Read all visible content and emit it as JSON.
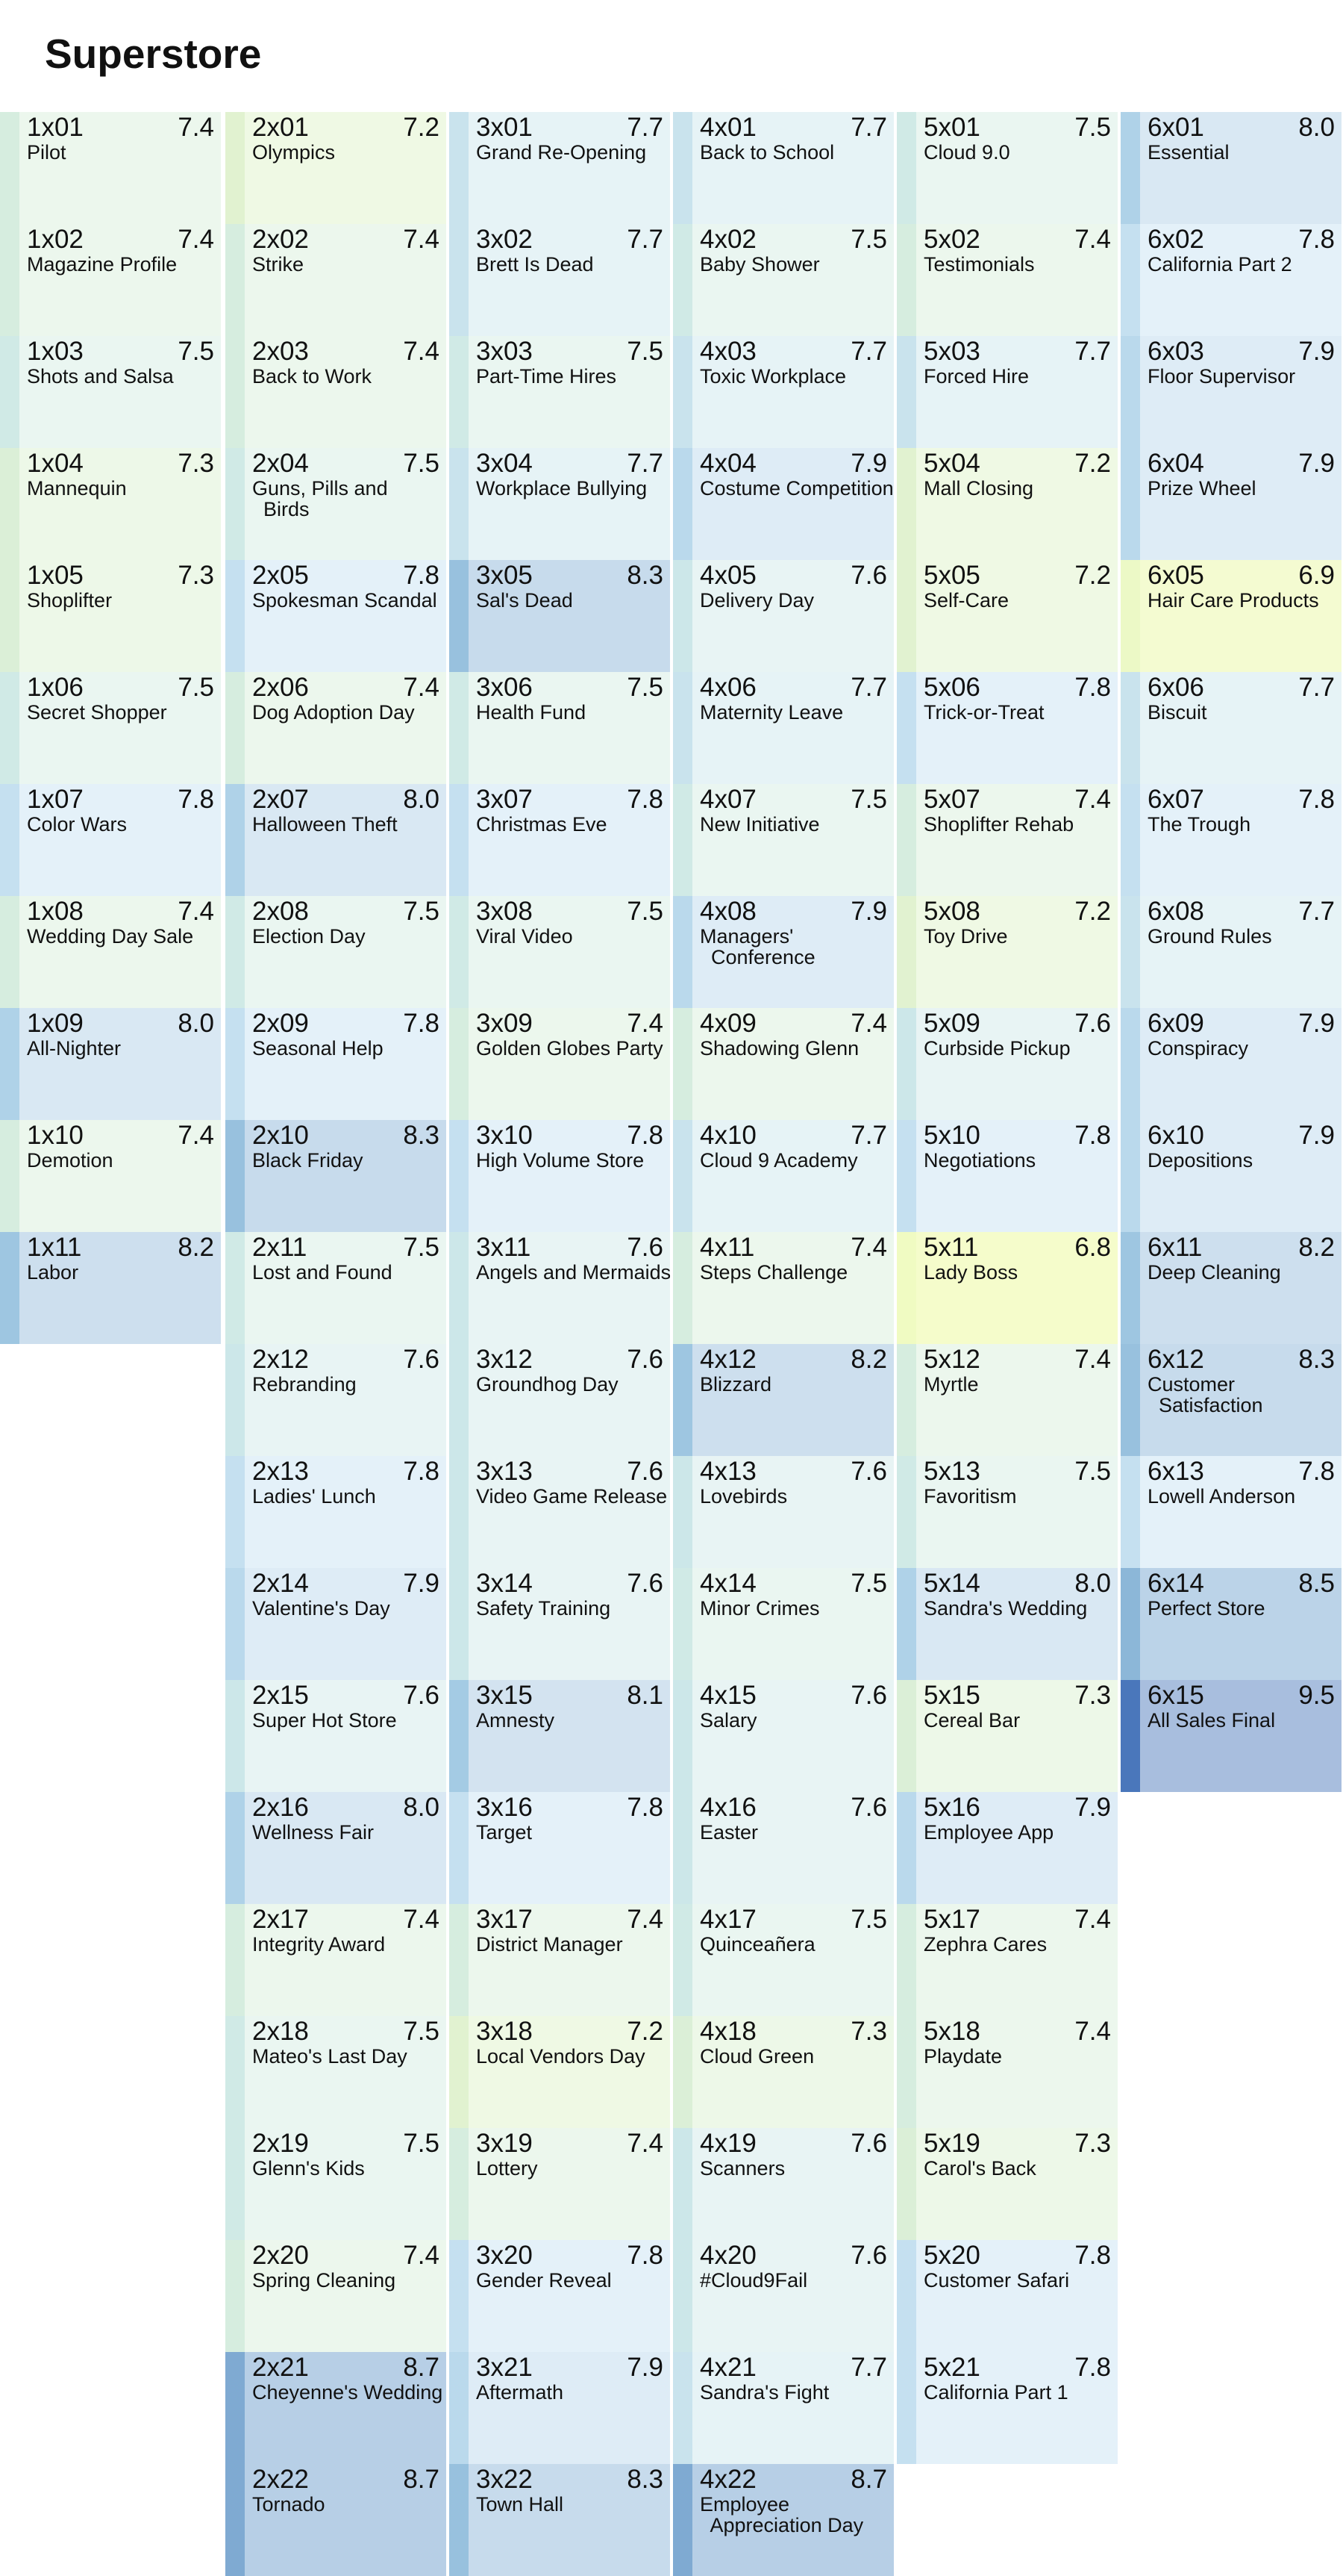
{
  "title": "Superstore",
  "chart_data": {
    "type": "heatmap",
    "title": "Superstore",
    "encoding": "tile color = episode rating (yellow-green low to blue high)",
    "color_scale": {
      "domain": [
        6.8,
        9.5
      ],
      "low": "#f5fccb",
      "mid": "#e8f5f3",
      "high": "#4a77bb"
    },
    "seasons": [
      {
        "season": 1,
        "episodes": [
          {
            "code": "1x01",
            "title": "Pilot",
            "rating": 7.4
          },
          {
            "code": "1x02",
            "title": "Magazine Profile",
            "rating": 7.4
          },
          {
            "code": "1x03",
            "title": "Shots and Salsa",
            "rating": 7.5
          },
          {
            "code": "1x04",
            "title": "Mannequin",
            "rating": 7.3
          },
          {
            "code": "1x05",
            "title": "Shoplifter",
            "rating": 7.3
          },
          {
            "code": "1x06",
            "title": "Secret Shopper",
            "rating": 7.5
          },
          {
            "code": "1x07",
            "title": "Color Wars",
            "rating": 7.8
          },
          {
            "code": "1x08",
            "title": "Wedding Day Sale",
            "rating": 7.4
          },
          {
            "code": "1x09",
            "title": "All-Nighter",
            "rating": 8.0
          },
          {
            "code": "1x10",
            "title": "Demotion",
            "rating": 7.4
          },
          {
            "code": "1x11",
            "title": "Labor",
            "rating": 8.2
          }
        ]
      },
      {
        "season": 2,
        "episodes": [
          {
            "code": "2x01",
            "title": "Olympics",
            "rating": 7.2
          },
          {
            "code": "2x02",
            "title": "Strike",
            "rating": 7.4
          },
          {
            "code": "2x03",
            "title": "Back to Work",
            "rating": 7.4
          },
          {
            "code": "2x04",
            "title": "Guns, Pills and\n  Birds",
            "rating": 7.5
          },
          {
            "code": "2x05",
            "title": "Spokesman Scandal",
            "rating": 7.8
          },
          {
            "code": "2x06",
            "title": "Dog Adoption Day",
            "rating": 7.4
          },
          {
            "code": "2x07",
            "title": "Halloween Theft",
            "rating": 8.0
          },
          {
            "code": "2x08",
            "title": "Election Day",
            "rating": 7.5
          },
          {
            "code": "2x09",
            "title": "Seasonal Help",
            "rating": 7.8
          },
          {
            "code": "2x10",
            "title": "Black Friday",
            "rating": 8.3
          },
          {
            "code": "2x11",
            "title": "Lost and Found",
            "rating": 7.5
          },
          {
            "code": "2x12",
            "title": "Rebranding",
            "rating": 7.6
          },
          {
            "code": "2x13",
            "title": "Ladies' Lunch",
            "rating": 7.8
          },
          {
            "code": "2x14",
            "title": "Valentine's Day",
            "rating": 7.9
          },
          {
            "code": "2x15",
            "title": "Super Hot Store",
            "rating": 7.6
          },
          {
            "code": "2x16",
            "title": "Wellness Fair",
            "rating": 8.0
          },
          {
            "code": "2x17",
            "title": "Integrity Award",
            "rating": 7.4
          },
          {
            "code": "2x18",
            "title": "Mateo's Last Day",
            "rating": 7.5
          },
          {
            "code": "2x19",
            "title": "Glenn's Kids",
            "rating": 7.5
          },
          {
            "code": "2x20",
            "title": "Spring Cleaning",
            "rating": 7.4
          },
          {
            "code": "2x21",
            "title": "Cheyenne's Wedding",
            "rating": 8.7
          },
          {
            "code": "2x22",
            "title": "Tornado",
            "rating": 8.7
          }
        ]
      },
      {
        "season": 3,
        "episodes": [
          {
            "code": "3x01",
            "title": "Grand Re-Opening",
            "rating": 7.7
          },
          {
            "code": "3x02",
            "title": "Brett Is Dead",
            "rating": 7.7
          },
          {
            "code": "3x03",
            "title": "Part-Time Hires",
            "rating": 7.5
          },
          {
            "code": "3x04",
            "title": "Workplace Bullying",
            "rating": 7.7
          },
          {
            "code": "3x05",
            "title": "Sal's Dead",
            "rating": 8.3
          },
          {
            "code": "3x06",
            "title": "Health Fund",
            "rating": 7.5
          },
          {
            "code": "3x07",
            "title": "Christmas Eve",
            "rating": 7.8
          },
          {
            "code": "3x08",
            "title": "Viral Video",
            "rating": 7.5
          },
          {
            "code": "3x09",
            "title": "Golden Globes Party",
            "rating": 7.4
          },
          {
            "code": "3x10",
            "title": "High Volume Store",
            "rating": 7.8
          },
          {
            "code": "3x11",
            "title": "Angels and Mermaids",
            "rating": 7.6
          },
          {
            "code": "3x12",
            "title": "Groundhog Day",
            "rating": 7.6
          },
          {
            "code": "3x13",
            "title": "Video Game Release",
            "rating": 7.6
          },
          {
            "code": "3x14",
            "title": "Safety Training",
            "rating": 7.6
          },
          {
            "code": "3x15",
            "title": "Amnesty",
            "rating": 8.1
          },
          {
            "code": "3x16",
            "title": "Target",
            "rating": 7.8
          },
          {
            "code": "3x17",
            "title": "District Manager",
            "rating": 7.4
          },
          {
            "code": "3x18",
            "title": "Local Vendors Day",
            "rating": 7.2
          },
          {
            "code": "3x19",
            "title": "Lottery",
            "rating": 7.4
          },
          {
            "code": "3x20",
            "title": "Gender Reveal",
            "rating": 7.8
          },
          {
            "code": "3x21",
            "title": "Aftermath",
            "rating": 7.9
          },
          {
            "code": "3x22",
            "title": "Town Hall",
            "rating": 8.3
          }
        ]
      },
      {
        "season": 4,
        "episodes": [
          {
            "code": "4x01",
            "title": "Back to School",
            "rating": 7.7
          },
          {
            "code": "4x02",
            "title": "Baby Shower",
            "rating": 7.5
          },
          {
            "code": "4x03",
            "title": "Toxic Workplace",
            "rating": 7.7
          },
          {
            "code": "4x04",
            "title": "Costume Competition",
            "rating": 7.9
          },
          {
            "code": "4x05",
            "title": "Delivery Day",
            "rating": 7.6
          },
          {
            "code": "4x06",
            "title": "Maternity Leave",
            "rating": 7.7
          },
          {
            "code": "4x07",
            "title": "New Initiative",
            "rating": 7.5
          },
          {
            "code": "4x08",
            "title": "Managers'\n  Conference",
            "rating": 7.9
          },
          {
            "code": "4x09",
            "title": "Shadowing Glenn",
            "rating": 7.4
          },
          {
            "code": "4x10",
            "title": "Cloud 9 Academy",
            "rating": 7.7
          },
          {
            "code": "4x11",
            "title": "Steps Challenge",
            "rating": 7.4
          },
          {
            "code": "4x12",
            "title": "Blizzard",
            "rating": 8.2
          },
          {
            "code": "4x13",
            "title": "Lovebirds",
            "rating": 7.6
          },
          {
            "code": "4x14",
            "title": "Minor Crimes",
            "rating": 7.5
          },
          {
            "code": "4x15",
            "title": "Salary",
            "rating": 7.6
          },
          {
            "code": "4x16",
            "title": "Easter",
            "rating": 7.6
          },
          {
            "code": "4x17",
            "title": "Quinceañera",
            "rating": 7.5
          },
          {
            "code": "4x18",
            "title": "Cloud Green",
            "rating": 7.3
          },
          {
            "code": "4x19",
            "title": "Scanners",
            "rating": 7.6
          },
          {
            "code": "4x20",
            "title": "#Cloud9Fail",
            "rating": 7.6
          },
          {
            "code": "4x21",
            "title": "Sandra's Fight",
            "rating": 7.7
          },
          {
            "code": "4x22",
            "title": "Employee\n  Appreciation Day",
            "rating": 8.7
          }
        ]
      },
      {
        "season": 5,
        "episodes": [
          {
            "code": "5x01",
            "title": "Cloud 9.0",
            "rating": 7.5
          },
          {
            "code": "5x02",
            "title": "Testimonials",
            "rating": 7.4
          },
          {
            "code": "5x03",
            "title": "Forced Hire",
            "rating": 7.7
          },
          {
            "code": "5x04",
            "title": "Mall Closing",
            "rating": 7.2
          },
          {
            "code": "5x05",
            "title": "Self-Care",
            "rating": 7.2
          },
          {
            "code": "5x06",
            "title": "Trick-or-Treat",
            "rating": 7.8
          },
          {
            "code": "5x07",
            "title": "Shoplifter Rehab",
            "rating": 7.4
          },
          {
            "code": "5x08",
            "title": "Toy Drive",
            "rating": 7.2
          },
          {
            "code": "5x09",
            "title": "Curbside Pickup",
            "rating": 7.6
          },
          {
            "code": "5x10",
            "title": "Negotiations",
            "rating": 7.8
          },
          {
            "code": "5x11",
            "title": "Lady Boss",
            "rating": 6.8
          },
          {
            "code": "5x12",
            "title": "Myrtle",
            "rating": 7.4
          },
          {
            "code": "5x13",
            "title": "Favoritism",
            "rating": 7.5
          },
          {
            "code": "5x14",
            "title": "Sandra's Wedding",
            "rating": 8.0
          },
          {
            "code": "5x15",
            "title": "Cereal Bar",
            "rating": 7.3
          },
          {
            "code": "5x16",
            "title": "Employee App",
            "rating": 7.9
          },
          {
            "code": "5x17",
            "title": "Zephra Cares",
            "rating": 7.4
          },
          {
            "code": "5x18",
            "title": "Playdate",
            "rating": 7.4
          },
          {
            "code": "5x19",
            "title": "Carol's Back",
            "rating": 7.3
          },
          {
            "code": "5x20",
            "title": "Customer Safari",
            "rating": 7.8
          },
          {
            "code": "5x21",
            "title": "California Part 1",
            "rating": 7.8
          }
        ]
      },
      {
        "season": 6,
        "episodes": [
          {
            "code": "6x01",
            "title": "Essential",
            "rating": 8.0
          },
          {
            "code": "6x02",
            "title": "California Part 2",
            "rating": 7.8
          },
          {
            "code": "6x03",
            "title": "Floor Supervisor",
            "rating": 7.9
          },
          {
            "code": "6x04",
            "title": "Prize Wheel",
            "rating": 7.9
          },
          {
            "code": "6x05",
            "title": "Hair Care Products",
            "rating": 6.9
          },
          {
            "code": "6x06",
            "title": "Biscuit",
            "rating": 7.7
          },
          {
            "code": "6x07",
            "title": "The Trough",
            "rating": 7.8
          },
          {
            "code": "6x08",
            "title": "Ground Rules",
            "rating": 7.7
          },
          {
            "code": "6x09",
            "title": "Conspiracy",
            "rating": 7.9
          },
          {
            "code": "6x10",
            "title": "Depositions",
            "rating": 7.9
          },
          {
            "code": "6x11",
            "title": "Deep Cleaning",
            "rating": 8.2
          },
          {
            "code": "6x12",
            "title": "Customer\n  Satisfaction",
            "rating": 8.3
          },
          {
            "code": "6x13",
            "title": "Lowell Anderson",
            "rating": 7.8
          },
          {
            "code": "6x14",
            "title": "Perfect Store",
            "rating": 8.5
          },
          {
            "code": "6x15",
            "title": "All Sales Final",
            "rating": 9.5
          }
        ]
      }
    ]
  }
}
